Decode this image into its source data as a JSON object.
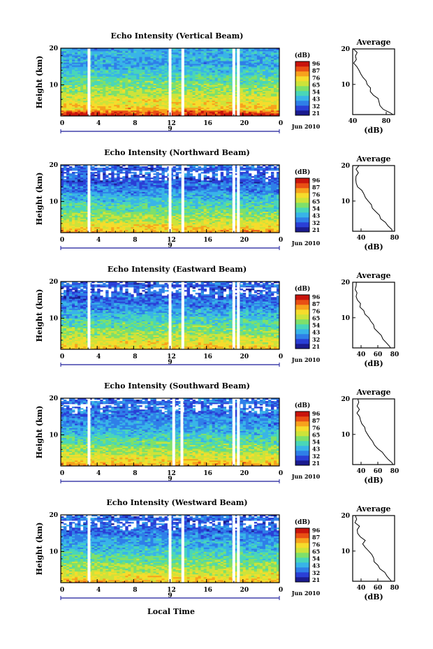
{
  "figure": {
    "xlabel": "Local Time",
    "date_label": "Jun 2010",
    "day_label": "9",
    "ylabel": "Height (km)",
    "avg_title": "Average",
    "avg_xlabel": "(dB)",
    "colorbar_label": "(dB)"
  },
  "colors": {
    "scale": [
      "#1b1b8f",
      "#2a3fd6",
      "#2f7fe8",
      "#38b4e8",
      "#49d6b8",
      "#7ee06a",
      "#cde33a",
      "#f6dc2c",
      "#f7a21d",
      "#e94f14",
      "#c8140c"
    ]
  },
  "chart_data": [
    {
      "type": "heatmap",
      "title": "Echo Intensity (Vertical Beam)",
      "x_ticks": [
        "0",
        "4",
        "8",
        "12",
        "16",
        "20",
        "0"
      ],
      "y_ticks": [
        "20",
        "10"
      ],
      "xlim": [
        0,
        24
      ],
      "ylim": [
        1.5,
        20
      ],
      "colorbar_ticks": [
        "96",
        "87",
        "76",
        "65",
        "54",
        "43",
        "32",
        "21"
      ],
      "gaps_hours": [
        3.1,
        12.0,
        13.4,
        19.0,
        19.5
      ],
      "profile": {
        "heights": [
          1.5,
          2,
          3,
          4,
          5,
          6,
          7,
          8,
          9,
          10,
          11,
          12,
          13,
          14,
          15,
          16,
          17,
          18,
          19,
          20
        ],
        "values": [
          89,
          84,
          76,
          73,
          70,
          69,
          64,
          62,
          60,
          57,
          55,
          53,
          50,
          48,
          45,
          42,
          45,
          43,
          46,
          40
        ]
      },
      "avg_xticks": [
        "40",
        "80"
      ],
      "avg_xlim": [
        40,
        90
      ],
      "avg_yticks": [
        "20",
        "10"
      ]
    },
    {
      "type": "heatmap",
      "title": "Echo Intensity (Northward Beam)",
      "x_ticks": [
        "0",
        "4",
        "8",
        "12",
        "16",
        "20",
        "0"
      ],
      "y_ticks": [
        "20",
        "10"
      ],
      "xlim": [
        0,
        24
      ],
      "ylim": [
        1.5,
        20
      ],
      "colorbar_ticks": [
        "96",
        "87",
        "76",
        "65",
        "54",
        "43",
        "32",
        "21"
      ],
      "gaps_hours": [
        3.1,
        12.0,
        13.4,
        19.0,
        19.5
      ],
      "profile": {
        "heights": [
          1.5,
          2,
          3,
          4,
          5,
          6,
          7,
          8,
          9,
          10,
          11,
          12,
          13,
          14,
          15,
          16,
          17,
          18,
          19,
          20
        ],
        "values": [
          78,
          76,
          72,
          68,
          63,
          61,
          57,
          54,
          52,
          49,
          46,
          43,
          40,
          37,
          35,
          33,
          35,
          36,
          34,
          37
        ]
      },
      "avg_xticks": [
        "40",
        "80"
      ],
      "avg_xlim": [
        30,
        80
      ],
      "avg_yticks": [
        "20",
        "10"
      ]
    },
    {
      "type": "heatmap",
      "title": "Echo Intensity (Eastward Beam)",
      "x_ticks": [
        "0",
        "4",
        "8",
        "12",
        "16",
        "20",
        "0"
      ],
      "y_ticks": [
        "20",
        "10"
      ],
      "xlim": [
        0,
        24
      ],
      "ylim": [
        1.5,
        20
      ],
      "colorbar_ticks": [
        "96",
        "87",
        "76",
        "65",
        "54",
        "43",
        "32",
        "21"
      ],
      "gaps_hours": [
        3.1,
        12.0,
        13.4,
        19.0,
        19.5
      ],
      "profile": {
        "heights": [
          1.5,
          2,
          3,
          4,
          5,
          6,
          7,
          8,
          9,
          10,
          11,
          12,
          13,
          14,
          15,
          16,
          17,
          18,
          19,
          20
        ],
        "values": [
          76,
          74,
          70,
          67,
          64,
          60,
          57,
          55,
          52,
          49,
          46,
          43,
          40,
          38,
          36,
          34,
          36,
          33,
          35,
          34
        ]
      },
      "avg_xticks": [
        "40",
        "60",
        "80"
      ],
      "avg_xlim": [
        30,
        80
      ],
      "avg_yticks": [
        "20",
        "10"
      ]
    },
    {
      "type": "heatmap",
      "title": "Echo Intensity (Southward Beam)",
      "x_ticks": [
        "0",
        "4",
        "8",
        "12",
        "16",
        "20",
        "0"
      ],
      "y_ticks": [
        "20",
        "10"
      ],
      "xlim": [
        0,
        24
      ],
      "ylim": [
        1.5,
        20
      ],
      "colorbar_ticks": [
        "96",
        "87",
        "76",
        "65",
        "54",
        "43",
        "32",
        "21"
      ],
      "gaps_hours": [
        3.1,
        12.4,
        13.3,
        19.0,
        19.5
      ],
      "profile": {
        "heights": [
          1.5,
          2,
          3,
          4,
          5,
          6,
          7,
          8,
          9,
          10,
          11,
          12,
          13,
          14,
          15,
          16,
          17,
          18,
          19,
          20
        ],
        "values": [
          79,
          77,
          72,
          67,
          64,
          60,
          57,
          55,
          52,
          49,
          45,
          43,
          41,
          40,
          38,
          36,
          38,
          34,
          37,
          35
        ]
      },
      "avg_xticks": [
        "40",
        "60",
        "80"
      ],
      "avg_xlim": [
        30,
        80
      ],
      "avg_yticks": [
        "20",
        "10"
      ]
    },
    {
      "type": "heatmap",
      "title": "Echo Intensity (Westward Beam)",
      "x_ticks": [
        "0",
        "4",
        "8",
        "12",
        "16",
        "20",
        "0"
      ],
      "y_ticks": [
        "20",
        "10"
      ],
      "xlim": [
        0,
        24
      ],
      "ylim": [
        1.5,
        20
      ],
      "colorbar_ticks": [
        "96",
        "87",
        "76",
        "65",
        "54",
        "43",
        "32",
        "21"
      ],
      "gaps_hours": [
        3.1,
        12.0,
        13.4,
        19.0,
        19.5
      ],
      "profile": {
        "heights": [
          1.5,
          2,
          3,
          4,
          5,
          6,
          7,
          8,
          9,
          10,
          11,
          12,
          13,
          14,
          15,
          16,
          17,
          18,
          19,
          20
        ],
        "values": [
          77,
          75,
          71,
          67,
          63,
          60,
          57,
          55,
          52,
          49,
          46,
          43,
          44,
          40,
          36,
          35,
          37,
          33,
          36,
          34
        ]
      },
      "avg_xticks": [
        "40",
        "60",
        "80"
      ],
      "avg_xlim": [
        30,
        80
      ],
      "avg_yticks": [
        "20",
        "10"
      ]
    }
  ]
}
